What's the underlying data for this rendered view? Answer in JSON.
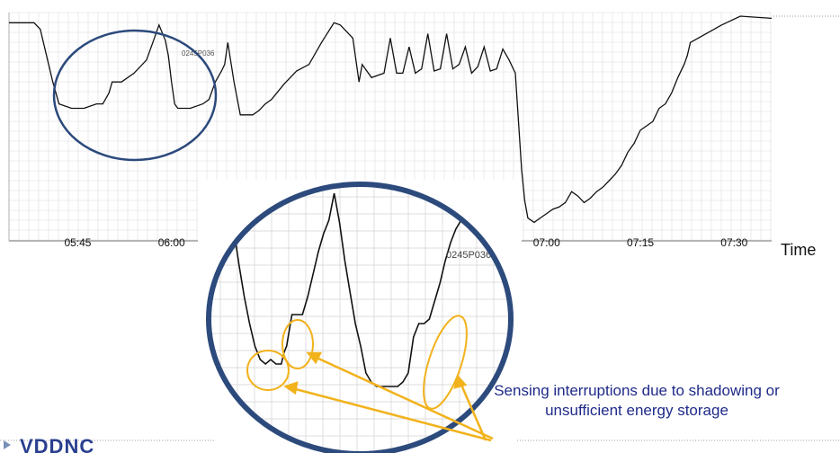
{
  "chart_data": [
    {
      "type": "line",
      "panel": "full",
      "sensor_id": "0245P036",
      "xlabel": "Time",
      "ticks": [
        "05:45",
        "06:00",
        "07:00",
        "07:15",
        "07:30"
      ],
      "tick_minutes": [
        345,
        360,
        420,
        435,
        450
      ],
      "xlim_minutes": [
        334,
        456
      ],
      "series_level": {
        "x_minutes": [
          334,
          336,
          338,
          339,
          341,
          342,
          344,
          346,
          348,
          349,
          350,
          350.5,
          352,
          354,
          356,
          357,
          358,
          359,
          359.5,
          360,
          360.5,
          361,
          363,
          365,
          366,
          367,
          368,
          368.5,
          369,
          370,
          371,
          373,
          374,
          375,
          376,
          378,
          380,
          382,
          384,
          386,
          387,
          389,
          390,
          390.5,
          392,
          394,
          395,
          396,
          397,
          398,
          399,
          400,
          401,
          402,
          403,
          404,
          405,
          406,
          407,
          408,
          409,
          410,
          411,
          412,
          413,
          414,
          415,
          416,
          416.5,
          417,
          418,
          419,
          420,
          421,
          422,
          423,
          424,
          425,
          426,
          427,
          428,
          429,
          430,
          431,
          432,
          433,
          434,
          435,
          436,
          437,
          438,
          439,
          440,
          441,
          442,
          442.5,
          443,
          448,
          451,
          456
        ],
        "level": [
          97,
          97,
          97,
          94,
          70,
          60,
          58,
          58,
          60,
          60,
          65,
          70,
          70,
          74,
          80,
          88,
          96,
          89,
          82,
          70,
          60,
          58,
          58,
          60,
          62,
          70,
          75,
          78,
          88,
          70,
          55,
          55,
          57,
          60,
          62,
          69,
          75,
          78,
          88,
          97,
          96,
          90,
          70,
          78,
          72,
          74,
          90,
          74,
          74,
          86,
          74,
          76,
          92,
          75,
          76,
          92,
          76,
          78,
          86,
          74,
          77,
          86,
          75,
          76,
          85,
          80,
          74,
          30,
          16,
          8,
          6,
          8,
          10,
          12,
          13,
          15,
          20,
          18,
          15,
          17,
          20,
          22,
          25,
          28,
          32,
          38,
          42,
          48,
          50,
          52,
          58,
          60,
          65,
          72,
          78,
          82,
          88,
          96,
          100,
          99,
          98,
          97,
          96
        ]
      }
    },
    {
      "type": "line",
      "panel": "zoom-inset",
      "sensor_id": "0245P036",
      "x": [
        0,
        2,
        4,
        6,
        8,
        10,
        12,
        14,
        16,
        18,
        20,
        21,
        22,
        24,
        26,
        28,
        30,
        32,
        34,
        36,
        38,
        40,
        42,
        44,
        46,
        48,
        50,
        52,
        54,
        56,
        58,
        60,
        62,
        64,
        66,
        68,
        70,
        72,
        74,
        76,
        78,
        80,
        82,
        84,
        86,
        88,
        90,
        92,
        94,
        96,
        98,
        100
      ],
      "level": [
        95,
        82,
        66,
        52,
        40,
        30,
        24,
        22,
        24,
        22,
        22,
        27,
        30,
        44,
        44,
        44,
        52,
        62,
        72,
        80,
        86,
        98,
        85,
        68,
        54,
        40,
        30,
        18,
        14,
        12,
        12,
        12,
        12,
        12,
        14,
        18,
        34,
        40,
        40,
        42,
        50,
        58,
        68,
        76,
        82,
        86,
        88,
        90,
        92,
        94,
        95,
        96
      ]
    }
  ],
  "annotation": {
    "text": "Sensing interruptions due to shadowing or unsufficient energy storage"
  },
  "logo": {
    "text": "VDDNC"
  },
  "colors": {
    "trace": "#111111",
    "grid": "#d8d8d8",
    "circle": "#2c4a7c",
    "highlight": "#f2b21c",
    "annotation": "#1f2a8a"
  }
}
